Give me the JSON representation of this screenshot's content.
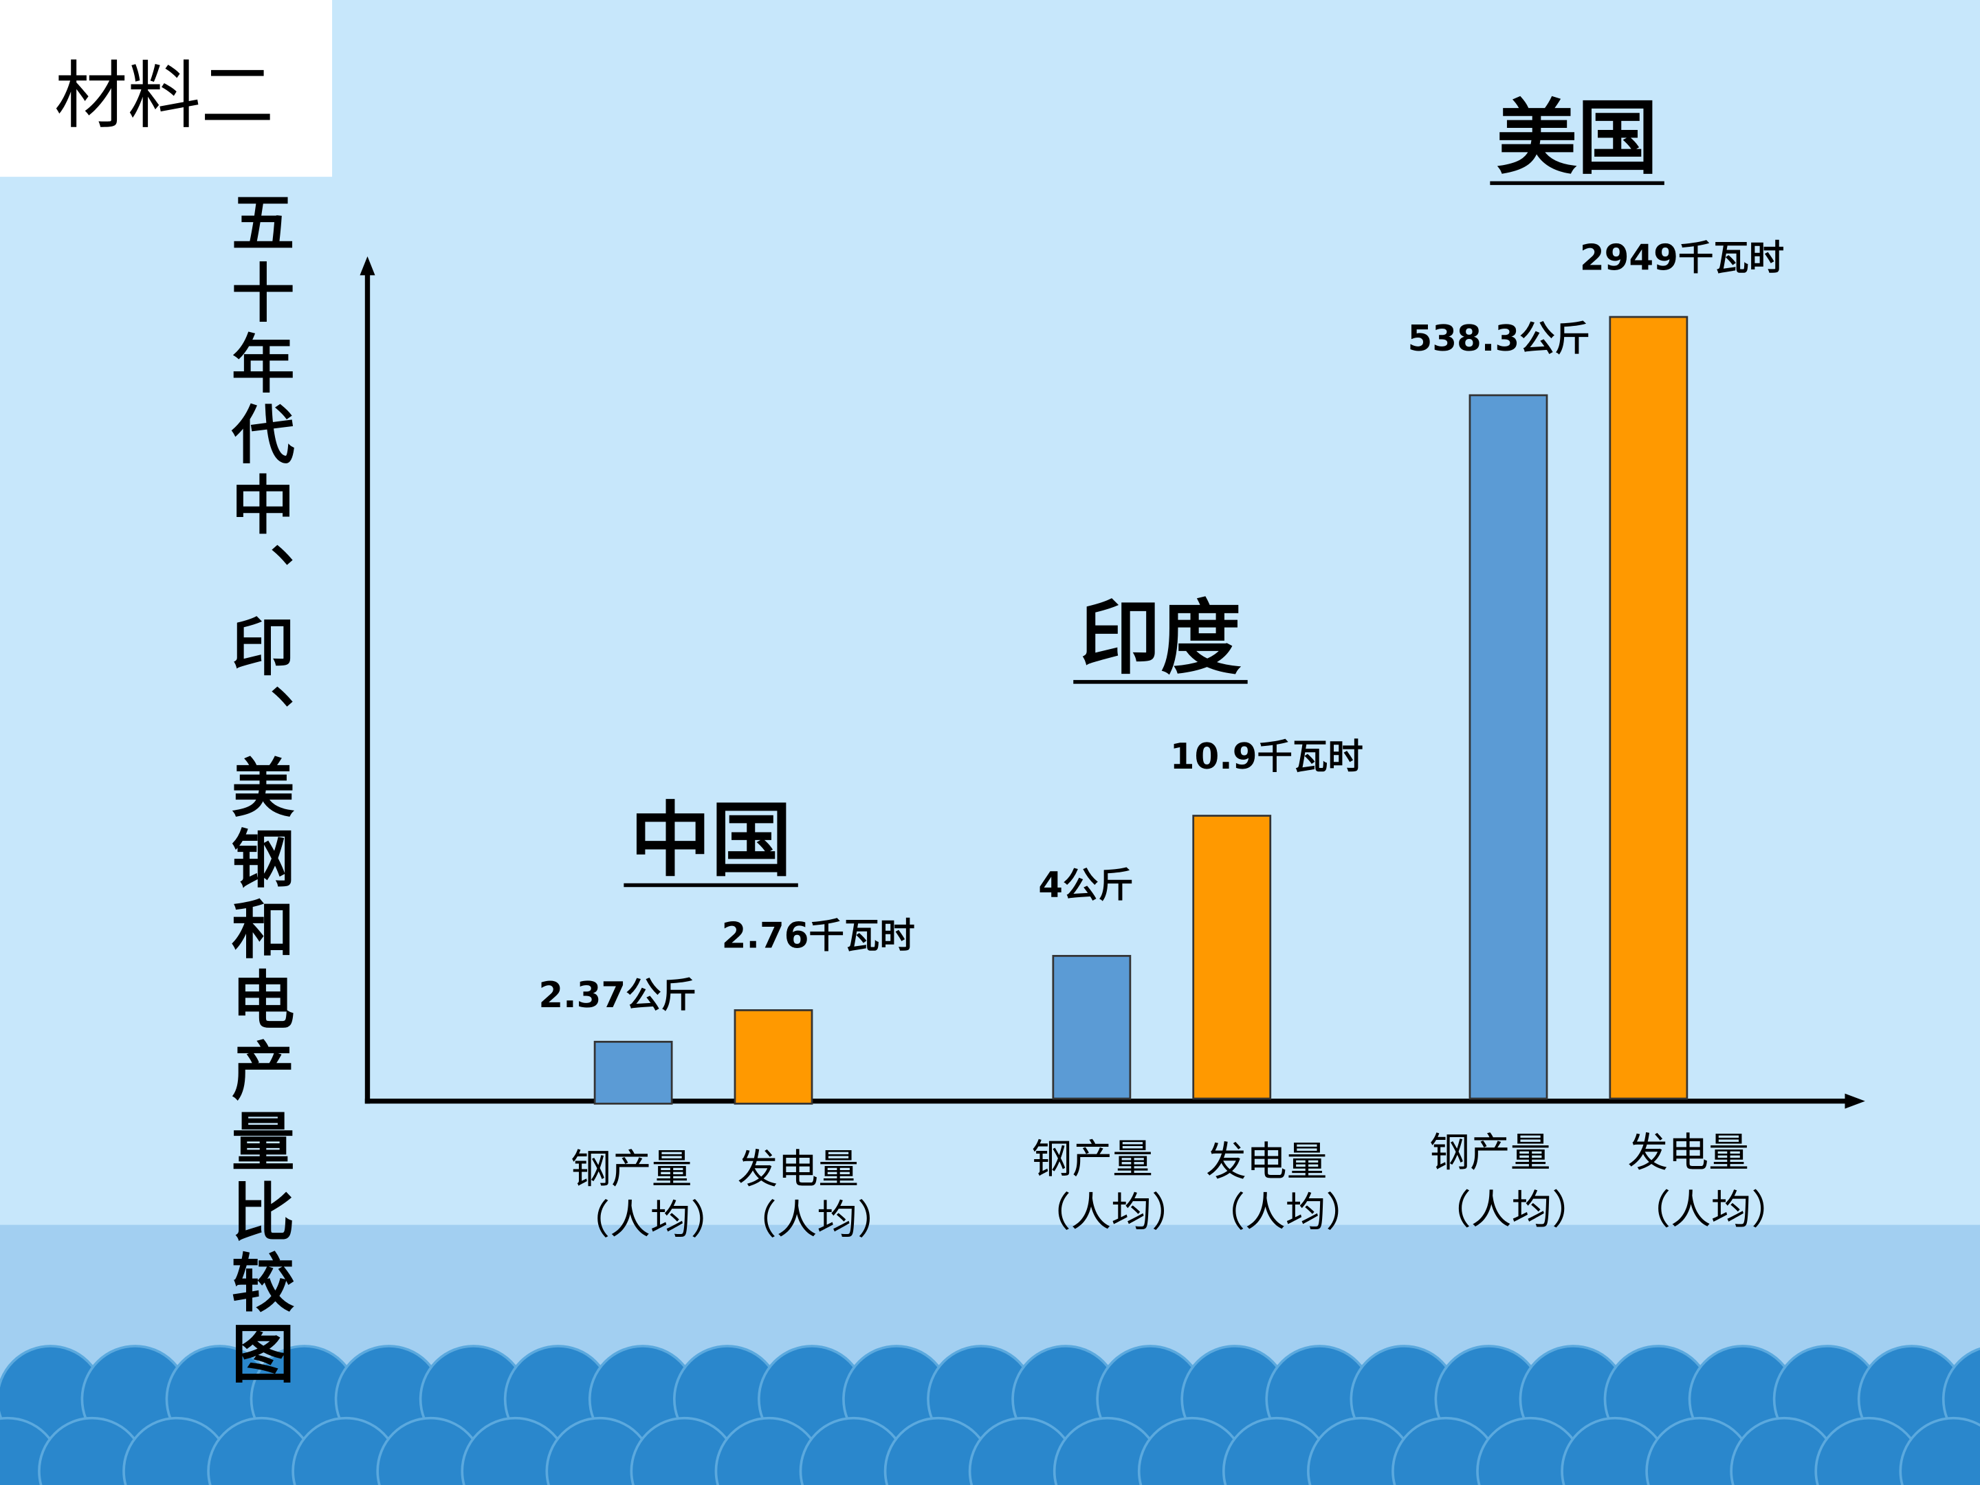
{
  "header": {
    "label": "材料二"
  },
  "title": "五十年代中、印、美钢和电产量比较图",
  "groups": [
    {
      "country": "中国",
      "bars": [
        {
          "value_label": "2.37公斤",
          "name": "钢产量",
          "note": "（人均）"
        },
        {
          "value_label": "2.76千瓦时",
          "name": "发电量",
          "note": "（人均）"
        }
      ]
    },
    {
      "country": "印度",
      "bars": [
        {
          "value_label": "4公斤",
          "name": "钢产量",
          "note": "（人均）"
        },
        {
          "value_label": "10.9千瓦时",
          "name": "发电量",
          "note": "（人均）"
        }
      ]
    },
    {
      "country": "美国",
      "bars": [
        {
          "value_label": "538.3公斤",
          "name": "钢产量",
          "note": "（人均）"
        },
        {
          "value_label": "2949千瓦时",
          "name": "发电量",
          "note": "（人均）"
        }
      ]
    }
  ]
}
